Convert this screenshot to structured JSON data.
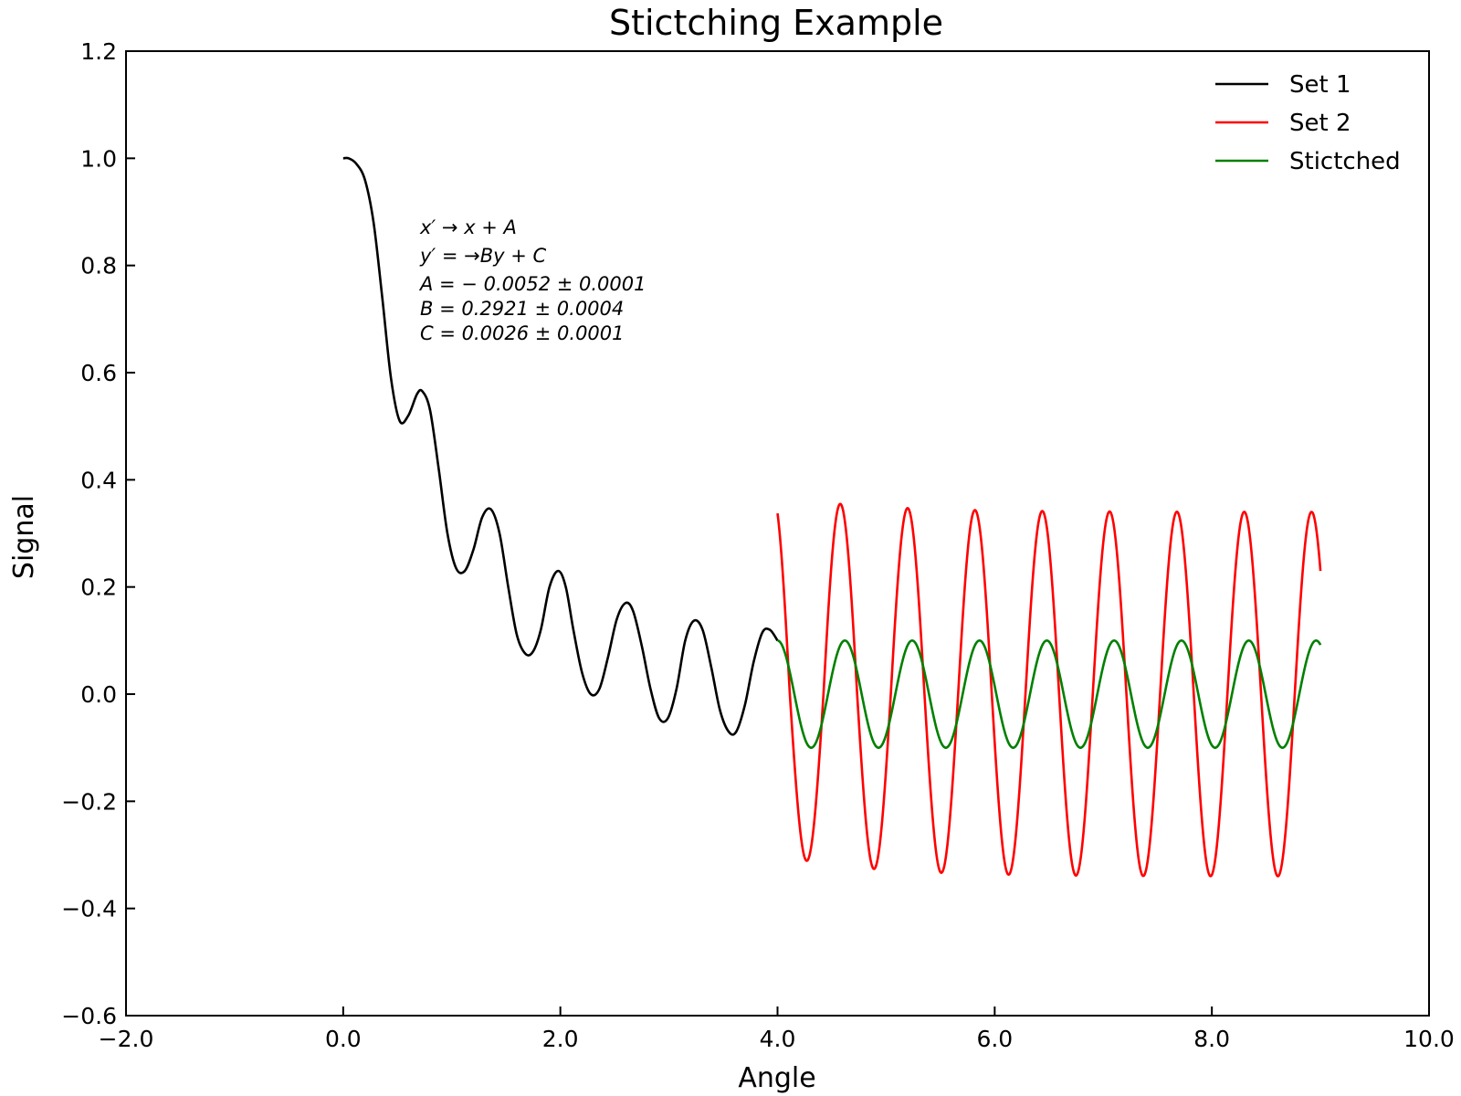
{
  "chart_data": {
    "type": "line",
    "title": "Stictching Example",
    "xlabel": "Angle",
    "ylabel": "Signal",
    "xlim": [
      -2.0,
      10.0
    ],
    "ylim": [
      -0.6,
      1.2
    ],
    "xticks": [
      -2.0,
      0.0,
      2.0,
      4.0,
      6.0,
      8.0,
      10.0
    ],
    "xtick_labels": [
      "−2.0",
      "0.0",
      "2.0",
      "4.0",
      "6.0",
      "8.0",
      "10.0"
    ],
    "yticks": [
      -0.6,
      -0.4,
      -0.2,
      0.0,
      0.2,
      0.4,
      0.6,
      0.8,
      1.0,
      1.2
    ],
    "ytick_labels": [
      "−0.6",
      "−0.4",
      "−0.2",
      "0.0",
      "0.2",
      "0.4",
      "0.6",
      "0.8",
      "1.0",
      "1.2"
    ],
    "grid": false,
    "legend_position": "top-right",
    "series": [
      {
        "name": "Set 1",
        "color": "#000000",
        "x": [
          0.0,
          0.05,
          0.12,
          0.2,
          0.28,
          0.36,
          0.44,
          0.52,
          0.6,
          0.68,
          0.73,
          0.8,
          0.88,
          0.96,
          1.04,
          1.12,
          1.2,
          1.28,
          1.36,
          1.44,
          1.52,
          1.6,
          1.68,
          1.75,
          1.82,
          1.9,
          1.98,
          2.05,
          2.12,
          2.2,
          2.28,
          2.36,
          2.44,
          2.52,
          2.6,
          2.67,
          2.75,
          2.83,
          2.91,
          2.99,
          3.07,
          3.15,
          3.23,
          3.31,
          3.39,
          3.47,
          3.55,
          3.62,
          3.7,
          3.78,
          3.86,
          3.93,
          4.0
        ],
        "y": [
          1.0,
          1.0,
          0.99,
          0.96,
          0.88,
          0.74,
          0.59,
          0.51,
          0.52,
          0.56,
          0.565,
          0.53,
          0.42,
          0.3,
          0.235,
          0.23,
          0.27,
          0.33,
          0.345,
          0.3,
          0.2,
          0.11,
          0.075,
          0.08,
          0.12,
          0.2,
          0.23,
          0.2,
          0.12,
          0.04,
          0.0,
          0.01,
          0.07,
          0.14,
          0.17,
          0.155,
          0.09,
          0.01,
          -0.045,
          -0.045,
          0.01,
          0.1,
          0.137,
          0.12,
          0.05,
          -0.03,
          -0.07,
          -0.07,
          -0.02,
          0.06,
          0.115,
          0.12,
          0.1
        ]
      },
      {
        "name": "Set 2",
        "color": "#ff0000",
        "x_start": 4.0,
        "x_end": 9.0,
        "period": 0.62,
        "center": 0.0,
        "amplitude_start": 0.34,
        "amplitude_end": 0.34,
        "peak_first": 0.37,
        "trough_first": -0.3,
        "y_start": 0.31,
        "y_end": 0.3
      },
      {
        "name": "Stictched",
        "color": "#008000",
        "x_start": 4.0,
        "x_end": 9.0,
        "period": 0.62,
        "amplitude": 0.1,
        "y_start": 0.1,
        "y_end": 0.09
      }
    ],
    "annotations": [
      {
        "lines": [
          "x′ → x + A",
          "y′ = →By + C",
          "A = − 0.0052 ± 0.0001",
          "B = 0.2921 ± 0.0004",
          "C = 0.0026 ± 0.0001"
        ]
      }
    ]
  }
}
